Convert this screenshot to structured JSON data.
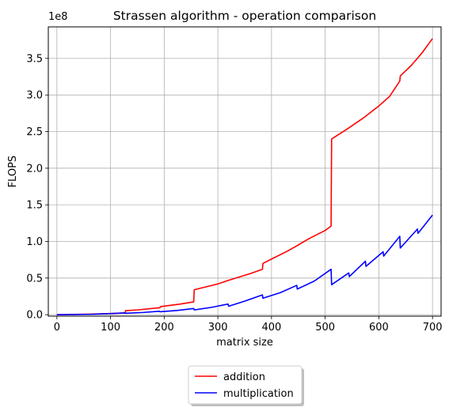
{
  "chart_data": {
    "type": "line",
    "title": "Strassen algorithm - operation comparison",
    "xlabel": "matrix size",
    "ylabel": "FLOPS",
    "y_offset_label": "1e8",
    "xlim": [
      -16,
      716
    ],
    "ylim": [
      -2000000,
      393000000
    ],
    "grid": true,
    "legend_position": "bottom-center-outside",
    "x_ticks": [
      0,
      100,
      200,
      300,
      400,
      500,
      600,
      700
    ],
    "x_tick_labels": [
      "0",
      "100",
      "200",
      "300",
      "400",
      "500",
      "600",
      "700"
    ],
    "y_ticks": [
      0,
      50000000,
      100000000,
      150000000,
      200000000,
      250000000,
      300000000,
      350000000
    ],
    "y_tick_labels": [
      "0.0",
      "0.5",
      "1.0",
      "1.5",
      "2.0",
      "2.5",
      "3.0",
      "3.5"
    ],
    "series": [
      {
        "name": "addition",
        "color": "#ff0000",
        "points": [
          [
            0,
            0
          ],
          [
            64,
            800000
          ],
          [
            127,
            2200000
          ],
          [
            128,
            5500000
          ],
          [
            150,
            6500000
          ],
          [
            192,
            9500000
          ],
          [
            193,
            11000000
          ],
          [
            230,
            14500000
          ],
          [
            255,
            17500000
          ],
          [
            256,
            34000000
          ],
          [
            300,
            42000000
          ],
          [
            320,
            47000000
          ],
          [
            360,
            56000000
          ],
          [
            383,
            62000000
          ],
          [
            384,
            70000000
          ],
          [
            400,
            76000000
          ],
          [
            430,
            87000000
          ],
          [
            447,
            94000000
          ],
          [
            470,
            104000000
          ],
          [
            500,
            115000000
          ],
          [
            511,
            121000000
          ],
          [
            512,
            240000000
          ],
          [
            540,
            253000000
          ],
          [
            570,
            268000000
          ],
          [
            600,
            285000000
          ],
          [
            620,
            298000000
          ],
          [
            639,
            319000000
          ],
          [
            640,
            326000000
          ],
          [
            660,
            340000000
          ],
          [
            680,
            357000000
          ],
          [
            700,
            377000000
          ]
        ]
      },
      {
        "name": "multiplication",
        "color": "#0000ff",
        "points": [
          [
            0,
            0
          ],
          [
            64,
            500000
          ],
          [
            100,
            1500000
          ],
          [
            127,
            2500000
          ],
          [
            128,
            2000000
          ],
          [
            160,
            3000000
          ],
          [
            191,
            4700000
          ],
          [
            192,
            4000000
          ],
          [
            224,
            5800000
          ],
          [
            255,
            8500000
          ],
          [
            256,
            6500000
          ],
          [
            288,
            10000000
          ],
          [
            319,
            14500000
          ],
          [
            320,
            11500000
          ],
          [
            350,
            18500000
          ],
          [
            383,
            27000000
          ],
          [
            384,
            22500000
          ],
          [
            416,
            30000000
          ],
          [
            447,
            40000000
          ],
          [
            448,
            35000000
          ],
          [
            480,
            46000000
          ],
          [
            511,
            62000000
          ],
          [
            512,
            41000000
          ],
          [
            544,
            57000000
          ],
          [
            545,
            52000000
          ],
          [
            575,
            73000000
          ],
          [
            576,
            66000000
          ],
          [
            608,
            86000000
          ],
          [
            609,
            80000000
          ],
          [
            639,
            107000000
          ],
          [
            640,
            91000000
          ],
          [
            672,
            117000000
          ],
          [
            673,
            111000000
          ],
          [
            700,
            136000000
          ]
        ]
      }
    ]
  }
}
